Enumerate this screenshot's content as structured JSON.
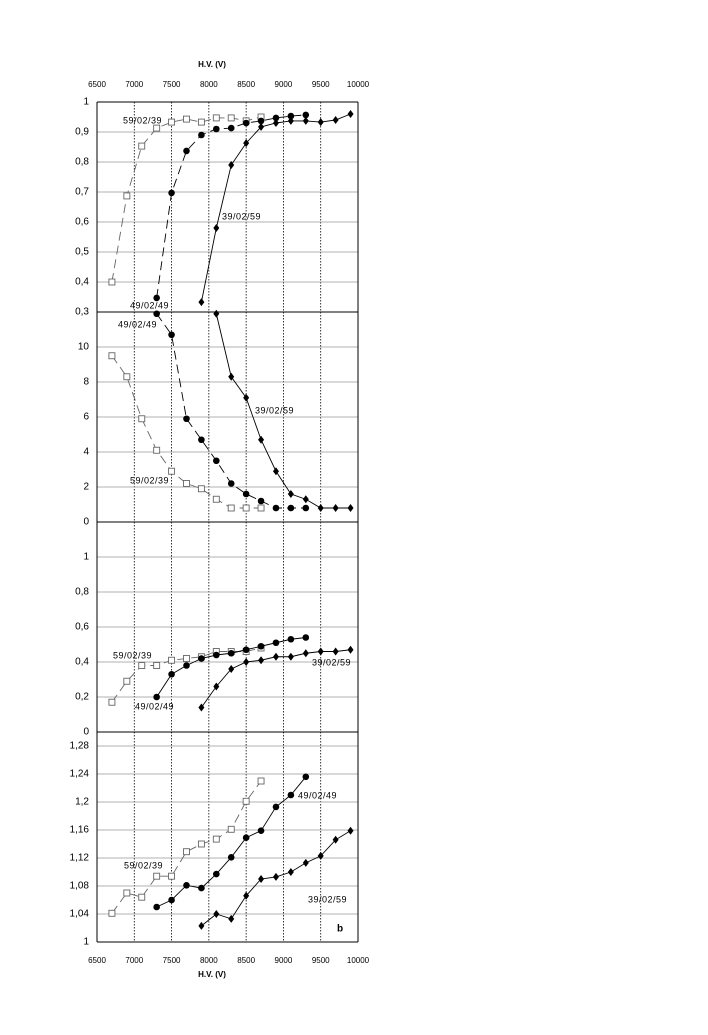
{
  "chart_data": [
    {
      "type": "line",
      "xlabel": "H.V.   (V)",
      "xlim": [
        6500,
        10000
      ],
      "xticks": [
        6500,
        7000,
        7500,
        8000,
        8500,
        9000,
        9500,
        10000
      ],
      "ylim": [
        0.3,
        1
      ],
      "yticks": [
        {
          "value": 0.3,
          "label": "0,3"
        },
        {
          "value": 0.4,
          "label": "0,4"
        },
        {
          "value": 0.5,
          "label": "0,5"
        },
        {
          "value": 0.6,
          "label": "0,6"
        },
        {
          "value": 0.7,
          "label": "0,7"
        },
        {
          "value": 0.8,
          "label": "0,8"
        },
        {
          "value": 0.9,
          "label": "0,9"
        },
        1
      ],
      "series": [
        {
          "name": "59/02/39",
          "color": "#666666",
          "marker": "square",
          "dash": true,
          "x": [
            6700,
            6900,
            7100,
            7300,
            7500,
            7700,
            7900,
            8100,
            8300,
            8500,
            8700
          ],
          "values": [
            0.4,
            0.687,
            0.853,
            0.913,
            0.933,
            0.943,
            0.933,
            0.947,
            0.947,
            0.937,
            0.95
          ]
        },
        {
          "name": "49/02/49",
          "color": "#000000",
          "marker": "circle",
          "dash": true,
          "x": [
            7300,
            7500,
            7700,
            7900,
            8100,
            8300,
            8500,
            8700,
            8900,
            9100,
            9300
          ],
          "values": [
            0.347,
            0.697,
            0.837,
            0.89,
            0.91,
            0.913,
            0.93,
            0.937,
            0.947,
            0.953,
            0.957
          ]
        },
        {
          "name": "39/02/59",
          "color": "#000000",
          "marker": "diamond",
          "dash": false,
          "x": [
            7900,
            8100,
            8300,
            8500,
            8700,
            8900,
            9100,
            9300,
            9500,
            9700,
            9900
          ],
          "values": [
            0.333,
            0.58,
            0.79,
            0.863,
            0.917,
            0.93,
            0.937,
            0.937,
            0.933,
            0.94,
            0.96
          ]
        }
      ]
    },
    {
      "type": "line",
      "xlim": [
        6500,
        10000
      ],
      "xticks": [
        6500,
        7000,
        7500,
        8000,
        8500,
        9000,
        9500,
        10000
      ],
      "ylim": [
        0,
        12
      ],
      "yticks": [
        0,
        2,
        4,
        6,
        8,
        10
      ],
      "series": [
        {
          "name": "49/02/49",
          "color": "#000000",
          "marker": "circle",
          "dash": true,
          "x": [
            7300,
            7500,
            7700,
            7900,
            8100,
            8300,
            8500,
            8700,
            8900,
            9100,
            9300
          ],
          "values": [
            11.9,
            10.7,
            5.9,
            4.7,
            3.5,
            2.2,
            1.6,
            1.2,
            0.8,
            0.8,
            0.8
          ]
        },
        {
          "name": "39/02/59",
          "color": "#000000",
          "marker": "diamond",
          "dash": false,
          "x": [
            8100,
            8300,
            8500,
            8700,
            8900,
            9100,
            9300,
            9500,
            9700,
            9900
          ],
          "values": [
            11.9,
            8.3,
            7.1,
            4.7,
            2.9,
            1.6,
            1.3,
            0.8,
            0.8,
            0.8
          ]
        },
        {
          "name": "59/02/39",
          "color": "#666666",
          "marker": "square",
          "dash": true,
          "x": [
            6700,
            6900,
            7100,
            7300,
            7500,
            7700,
            7900,
            8100,
            8300,
            8500,
            8700
          ],
          "values": [
            9.5,
            8.3,
            5.9,
            4.1,
            2.9,
            2.2,
            1.9,
            1.3,
            0.8,
            0.8,
            0.8
          ]
        }
      ]
    },
    {
      "type": "line",
      "xlim": [
        6500,
        10000
      ],
      "xticks": [
        6500,
        7000,
        7500,
        8000,
        8500,
        9000,
        9500,
        10000
      ],
      "ylim": [
        0,
        1.2
      ],
      "yticks": [
        0,
        {
          "value": 0.2,
          "label": "0,2"
        },
        {
          "value": 0.4,
          "label": "0,4"
        },
        {
          "value": 0.6,
          "label": "0,6"
        },
        {
          "value": 0.8,
          "label": "0,8"
        },
        1
      ],
      "series": [
        {
          "name": "59/02/39",
          "color": "#666666",
          "marker": "square",
          "dash": true,
          "x": [
            6700,
            6900,
            7100,
            7300,
            7500,
            7700,
            7900,
            8100,
            8300,
            8500,
            8700
          ],
          "values": [
            0.17,
            0.29,
            0.38,
            0.38,
            0.41,
            0.42,
            0.43,
            0.46,
            0.46,
            0.46,
            0.48
          ]
        },
        {
          "name": "49/02/49",
          "color": "#000000",
          "marker": "circle",
          "dash": false,
          "x": [
            7300,
            7500,
            7700,
            7900,
            8100,
            8300,
            8500,
            8700,
            8900,
            9100,
            9300
          ],
          "values": [
            0.2,
            0.33,
            0.38,
            0.42,
            0.44,
            0.45,
            0.47,
            0.49,
            0.51,
            0.53,
            0.54
          ]
        },
        {
          "name": "39/02/59",
          "color": "#000000",
          "marker": "diamond",
          "dash": false,
          "x": [
            7900,
            8100,
            8300,
            8500,
            8700,
            8900,
            9100,
            9300,
            9500,
            9700,
            9900
          ],
          "values": [
            0.14,
            0.26,
            0.36,
            0.4,
            0.41,
            0.43,
            0.43,
            0.45,
            0.46,
            0.46,
            0.47
          ]
        }
      ]
    },
    {
      "type": "line",
      "xlabel": "H.V.   (V)",
      "annotation": "b",
      "xlim": [
        6500,
        10000
      ],
      "xticks": [
        6500,
        7000,
        7500,
        8000,
        8500,
        9000,
        9500,
        10000
      ],
      "ylim": [
        1,
        1.3
      ],
      "yticks": [
        1,
        {
          "value": 1.04,
          "label": "1,04"
        },
        {
          "value": 1.08,
          "label": "1,08"
        },
        {
          "value": 1.12,
          "label": "1,12"
        },
        {
          "value": 1.16,
          "label": "1,16"
        },
        {
          "value": 1.2,
          "label": "1,2"
        },
        {
          "value": 1.24,
          "label": "1,24"
        },
        {
          "value": 1.28,
          "label": "1,28"
        }
      ],
      "series": [
        {
          "name": "49/02/49",
          "color": "#000000",
          "marker": "circle",
          "dash": false,
          "x": [
            7300,
            7500,
            7700,
            7900,
            8100,
            8300,
            8500,
            8700,
            8900,
            9100,
            9300
          ],
          "values": [
            1.05,
            1.06,
            1.081,
            1.077,
            1.097,
            1.121,
            1.149,
            1.159,
            1.193,
            1.21,
            1.236
          ]
        },
        {
          "name": "59/02/39",
          "color": "#666666",
          "marker": "square",
          "dash": true,
          "x": [
            6700,
            6900,
            7100,
            7300,
            7500,
            7700,
            7900,
            8100,
            8300,
            8500,
            8700
          ],
          "values": [
            1.041,
            1.07,
            1.064,
            1.094,
            1.094,
            1.129,
            1.14,
            1.147,
            1.161,
            1.201,
            1.23
          ]
        },
        {
          "name": "39/02/59",
          "color": "#000000",
          "marker": "diamond",
          "dash": false,
          "x": [
            7900,
            8100,
            8300,
            8500,
            8700,
            8900,
            9100,
            9300,
            9500,
            9700,
            9900
          ],
          "values": [
            1.023,
            1.04,
            1.033,
            1.066,
            1.09,
            1.093,
            1.1,
            1.113,
            1.123,
            1.146,
            1.159
          ]
        }
      ]
    }
  ]
}
